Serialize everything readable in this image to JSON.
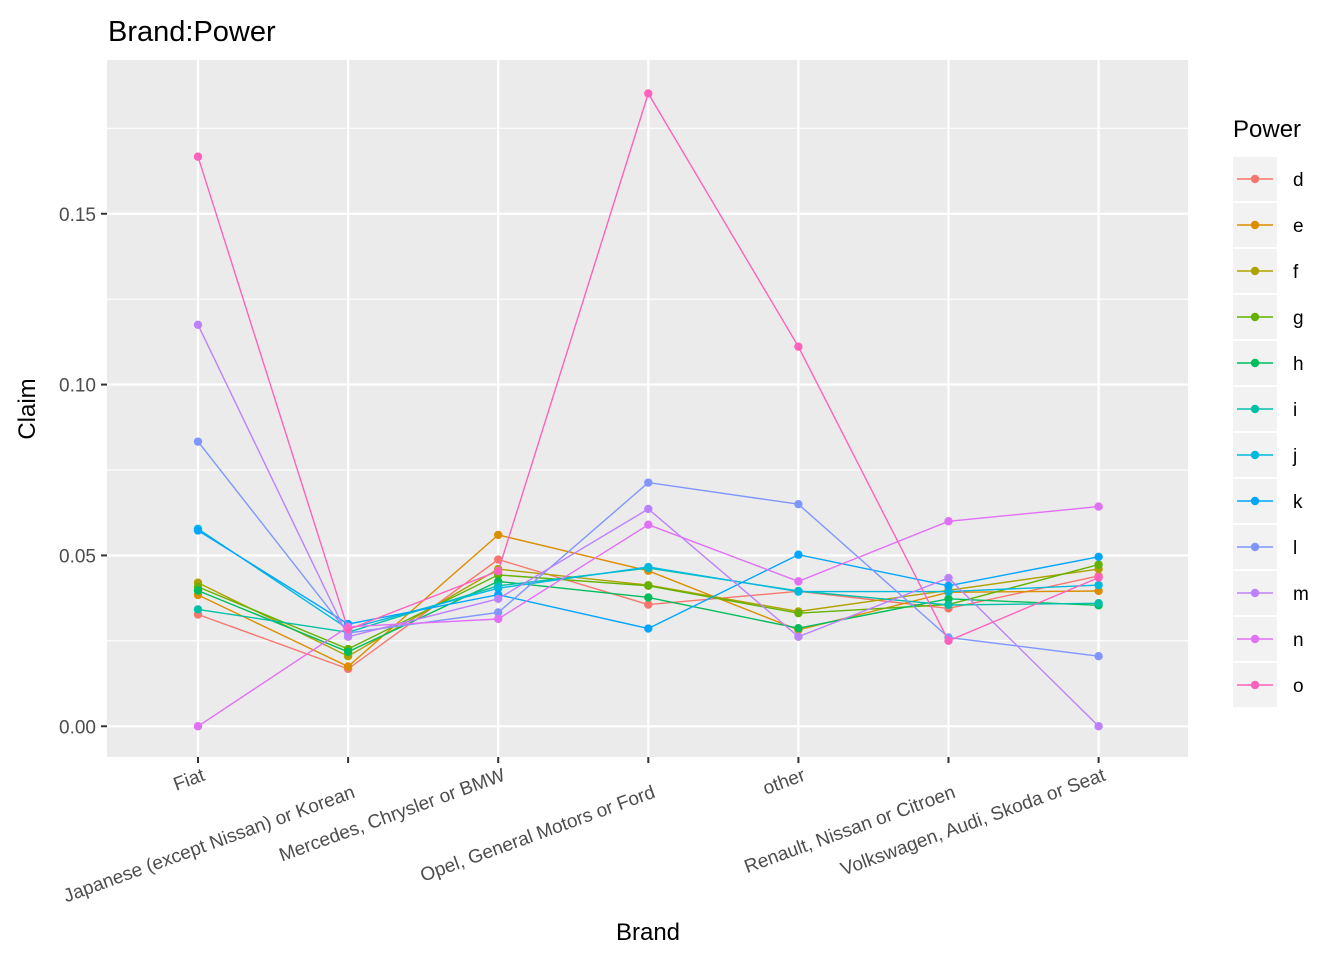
{
  "chart_data": {
    "type": "line",
    "title": "Brand:Power",
    "xlabel": "Brand",
    "ylabel": "Claim",
    "ylim": [
      -0.009,
      0.195
    ],
    "y_ticks": [
      0.0,
      0.05,
      0.1,
      0.15
    ],
    "y_tick_labels": [
      "0.00",
      "0.05",
      "0.10",
      "0.15"
    ],
    "categories": [
      "Fiat",
      "Japanese (except Nissan) or Korean",
      "Mercedes, Chrysler or BMW",
      "Opel, General Motors or Ford",
      "other",
      "Renault, Nissan or Citroen",
      "Volkswagen, Audi, Skoda or Seat"
    ],
    "grid": true,
    "legend": {
      "title": "Power",
      "placement": "right"
    },
    "series": [
      {
        "name": "d",
        "color": "#F8766D",
        "values": [
          0.0327,
          0.0168,
          0.0488,
          0.0356,
          0.0395,
          0.0345,
          0.044
        ]
      },
      {
        "name": "e",
        "color": "#DB8E00",
        "values": [
          0.0384,
          0.0175,
          0.056,
          0.0455,
          0.0282,
          0.0392,
          0.0396
        ]
      },
      {
        "name": "f",
        "color": "#AEA200",
        "values": [
          0.042,
          0.0205,
          0.046,
          0.0413,
          0.0336,
          0.0398,
          0.046
        ]
      },
      {
        "name": "g",
        "color": "#64B200",
        "values": [
          0.0408,
          0.0226,
          0.0443,
          0.0411,
          0.0331,
          0.0356,
          0.0473
        ]
      },
      {
        "name": "h",
        "color": "#00BD5C",
        "values": [
          0.0397,
          0.0218,
          0.0424,
          0.0377,
          0.0287,
          0.0373,
          0.0354
        ]
      },
      {
        "name": "i",
        "color": "#00C1A7",
        "values": [
          0.0342,
          0.0275,
          0.0411,
          0.0463,
          0.0396,
          0.0355,
          0.036
        ]
      },
      {
        "name": "j",
        "color": "#00BADE",
        "values": [
          0.0578,
          0.0285,
          0.0404,
          0.0466,
          0.0394,
          0.0394,
          0.0413
        ]
      },
      {
        "name": "k",
        "color": "#00A6FF",
        "values": [
          0.0573,
          0.0299,
          0.0385,
          0.0286,
          0.0502,
          0.0411,
          0.0496
        ]
      },
      {
        "name": "l",
        "color": "#7F96FF",
        "values": [
          0.0833,
          0.0273,
          0.0333,
          0.0713,
          0.065,
          0.026,
          0.0205
        ]
      },
      {
        "name": "m",
        "color": "#BC81FF",
        "values": [
          0.1175,
          0.0262,
          0.0373,
          0.0636,
          0.0262,
          0.0434,
          0.0
        ]
      },
      {
        "name": "n",
        "color": "#E270F6",
        "values": [
          0.0,
          0.0291,
          0.0314,
          0.059,
          0.0424,
          0.06,
          0.0643
        ]
      },
      {
        "name": "o",
        "color": "#FF62BC",
        "values": [
          0.1667,
          0.0283,
          0.0454,
          0.1852,
          0.1111,
          0.025,
          0.0435
        ]
      }
    ]
  }
}
